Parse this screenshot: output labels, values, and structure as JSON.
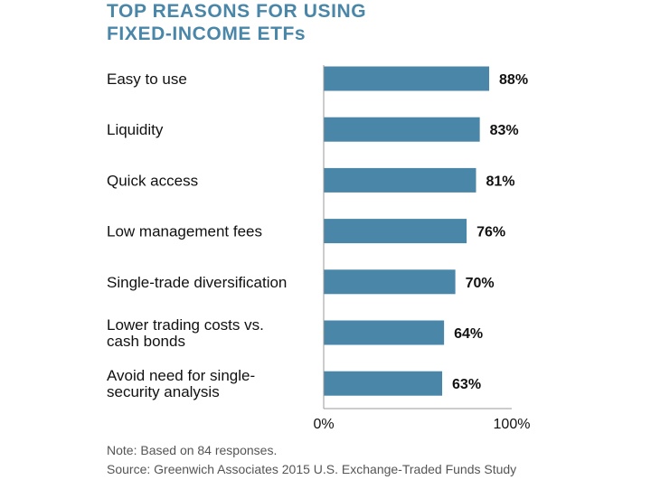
{
  "title_lines": [
    "TOP REASONS FOR USING",
    "FIXED-INCOME ETFs"
  ],
  "chart_data": {
    "type": "bar",
    "orientation": "horizontal",
    "categories": [
      [
        "Easy to use"
      ],
      [
        "Liquidity"
      ],
      [
        "Quick access"
      ],
      [
        "Low management fees"
      ],
      [
        "Single-trade diversification"
      ],
      [
        "Lower trading costs vs.",
        "cash bonds"
      ],
      [
        "Avoid need for single-",
        "security analysis"
      ]
    ],
    "values": [
      88,
      83,
      81,
      76,
      70,
      64,
      63
    ],
    "value_labels": [
      "88%",
      "83%",
      "81%",
      "76%",
      "70%",
      "64%",
      "63%"
    ],
    "xlim": [
      0,
      100
    ],
    "xticks": [
      {
        "value": 0,
        "label": "0%"
      },
      {
        "value": 100,
        "label": "100%"
      }
    ],
    "grid": false,
    "colors": {
      "bar": "#4a86a8",
      "axis": "#999999",
      "text": "#111111",
      "title": "#4a86a8"
    }
  },
  "notes": {
    "note": "Note: Based on 84 responses.",
    "source": "Source: Greenwich Associates 2015 U.S. Exchange-Traded Funds Study"
  }
}
